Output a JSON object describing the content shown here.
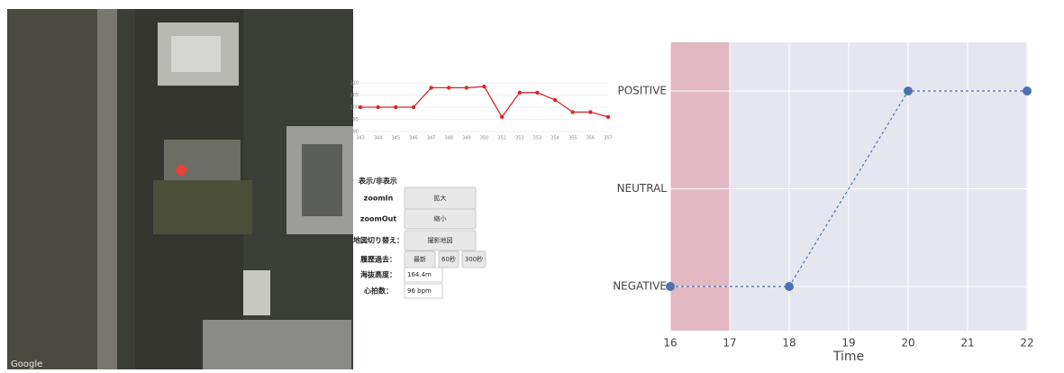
{
  "map": {
    "attribution": "Google"
  },
  "chart_data": [
    {
      "type": "line",
      "categories": [
        "343",
        "344",
        "345",
        "346",
        "347",
        "348",
        "349",
        "350",
        "351",
        "352",
        "353",
        "354",
        "355",
        "356",
        "357"
      ],
      "values": [
        100,
        100,
        100,
        100,
        108,
        108,
        108,
        108.5,
        96,
        106,
        106,
        103,
        98,
        98,
        96
      ],
      "color": "#d62728",
      "ylim": [
        90,
        110
      ],
      "yticks": [
        90,
        95,
        100,
        105,
        110
      ],
      "grid": true
    },
    {
      "type": "category-scatter",
      "x": [
        16,
        18,
        20,
        22
      ],
      "values": [
        "NEGATIVE",
        "NEGATIVE",
        "POSITIVE",
        "POSITIVE"
      ],
      "y_categories": [
        "NEGATIVE",
        "NEUTRAL",
        "POSITIVE"
      ],
      "color": "#4c72b0",
      "xlim": [
        16,
        22
      ],
      "xticks": [
        16,
        17,
        18,
        19,
        20,
        21,
        22
      ],
      "xlabel": "Time",
      "shade": {
        "from": 16,
        "to": 17,
        "color": "#e2b8c3"
      },
      "grid": true
    }
  ],
  "panel": {
    "title": "表示/非表示",
    "rows": [
      {
        "label": "zoomIn",
        "buttons": [
          "拡大"
        ]
      },
      {
        "label": "zoomOut",
        "buttons": [
          "縮小"
        ]
      },
      {
        "label": "地図切り替え：",
        "buttons": [
          "撮影地図"
        ]
      },
      {
        "label": "履歴過去：",
        "buttons": [
          "最新",
          "60秒",
          "300秒"
        ]
      },
      {
        "label": "海抜高度：",
        "value": "164.4m"
      },
      {
        "label": "心拍数：",
        "value": "96 bpm"
      }
    ]
  }
}
